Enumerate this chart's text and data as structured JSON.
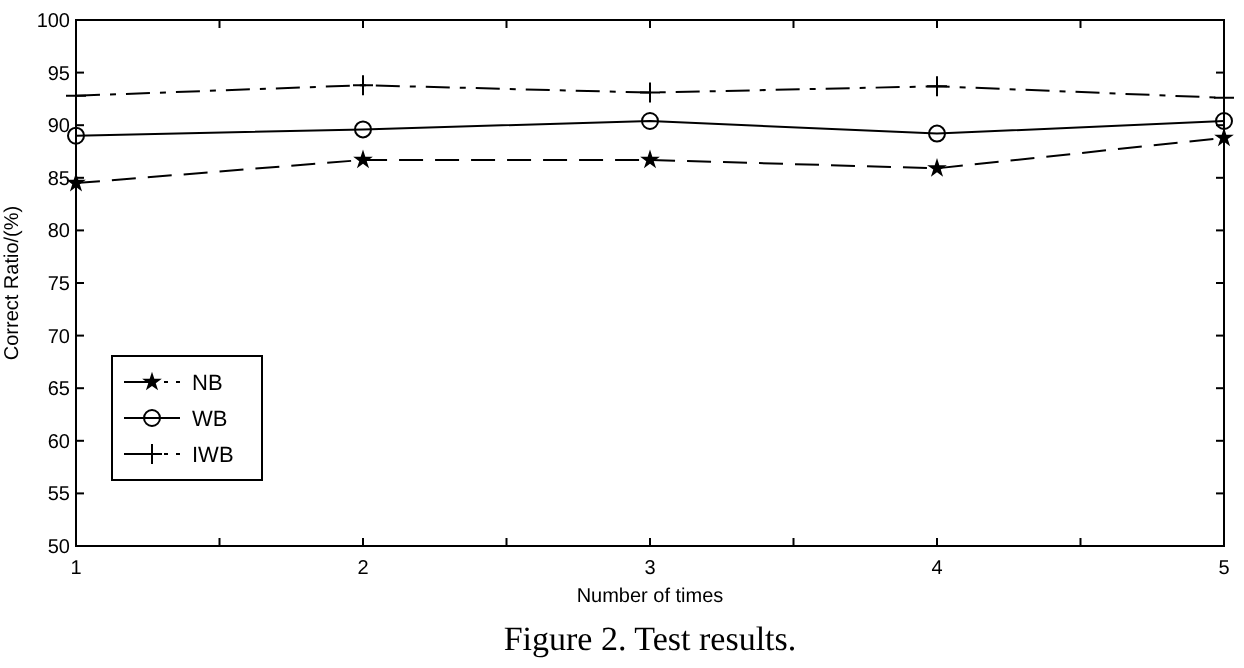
{
  "chart_data": {
    "type": "line",
    "xlabel": "Number of times",
    "ylabel": "Correct Ratio/(%)",
    "x": [
      1,
      2,
      3,
      4,
      5
    ],
    "series": [
      {
        "name": "NB",
        "color": "#000000",
        "values": [
          84.5,
          86.7,
          86.7,
          85.9,
          88.8
        ],
        "marker": "star",
        "line_style": "dashed"
      },
      {
        "name": "WB",
        "color": "#000000",
        "values": [
          89.0,
          89.6,
          90.4,
          89.2,
          90.4
        ],
        "marker": "circle",
        "line_style": "solid"
      },
      {
        "name": "IWB",
        "color": "#000000",
        "values": [
          92.8,
          93.8,
          93.1,
          93.7,
          92.6
        ],
        "marker": "cross",
        "line_style": "dashdot"
      }
    ],
    "xlim": [
      1,
      5
    ],
    "xticks": [
      1,
      {
        "value": 1.5,
        "label": null
      },
      2,
      {
        "value": 2.5,
        "label": null
      },
      3,
      {
        "value": 3.5,
        "label": null
      },
      4,
      {
        "value": 4.5,
        "label": null
      },
      5
    ],
    "ylim": [
      50,
      100
    ],
    "yticks": [
      50,
      55,
      60,
      65,
      70,
      75,
      80,
      85,
      90,
      95,
      100
    ],
    "grid": false,
    "legend": "bottom left",
    "annotations": [
      "Figure 2. Test results."
    ]
  }
}
